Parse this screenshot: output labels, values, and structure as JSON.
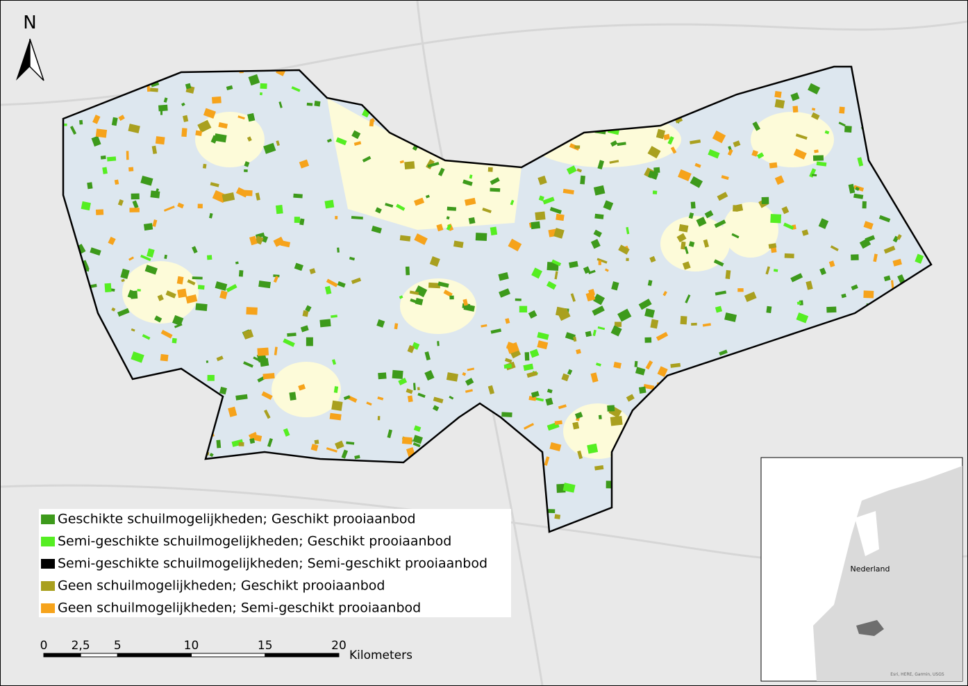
{
  "north": "N",
  "legend": [
    {
      "label": "Geschikte schuilmogelijkheden; Geschikt prooiaanbod",
      "color": "#3d9a1b"
    },
    {
      "label": "Semi-geschikte schuilmogelijkheden; Geschikt prooiaanbod",
      "color": "#55ee22"
    },
    {
      "label": "Semi-geschikte schuilmogelijkheden; Semi-geschikt prooiaanbod",
      "color": "#000000"
    },
    {
      "label": "Geen schuilmogelijkheden; Geschikt prooiaanbod",
      "color": "#a9a01f"
    },
    {
      "label": "Geen schuilmogelijkheden; Semi-geschikt prooiaanbod",
      "color": "#f6a31b"
    }
  ],
  "scale": {
    "ticks": [
      0,
      {
        "value": 2.5,
        "label": "2,5"
      },
      5,
      10,
      15,
      20
    ],
    "unit": "Kilometers"
  },
  "inset": {
    "label": "Nederland",
    "attribution": "Esri, HERE, Garmin, USGS"
  }
}
